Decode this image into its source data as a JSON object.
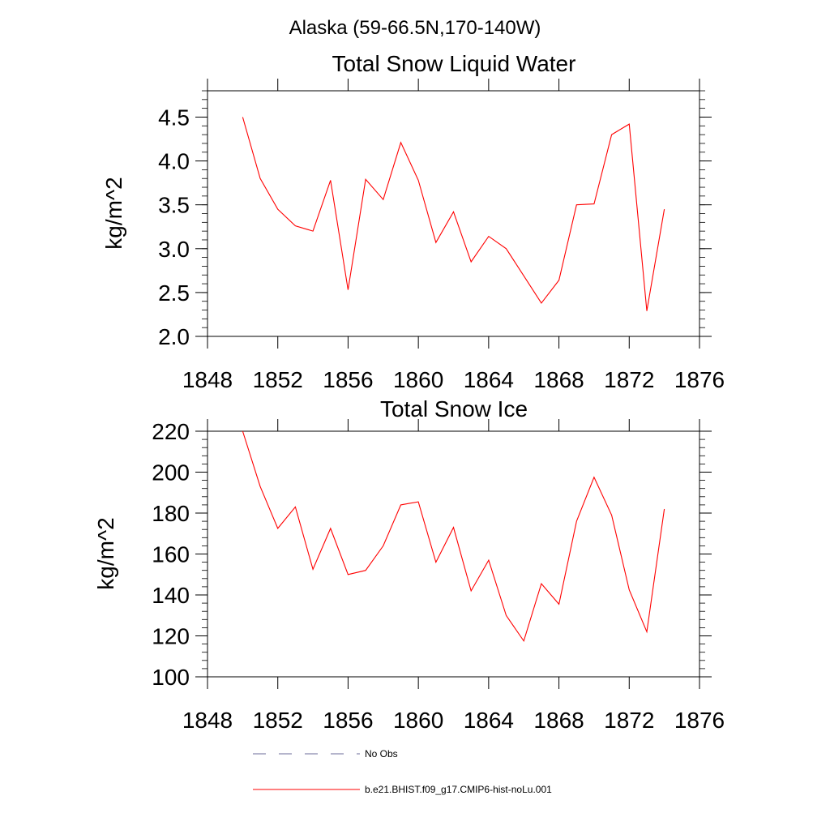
{
  "figure": {
    "main_title": "Alaska (59-66.5N,170-140W)"
  },
  "colors": {
    "model_line": "#ff0000",
    "obs_line": "#6b6b9a",
    "axis": "#000000"
  },
  "chart_data": [
    {
      "type": "line",
      "title": "Total Snow Liquid Water",
      "xlabel": "",
      "ylabel": "kg/m^2",
      "xlim": [
        1848,
        1876
      ],
      "ylim": [
        2.0,
        4.8
      ],
      "xticks": [
        1848,
        1852,
        1856,
        1860,
        1864,
        1868,
        1872,
        1876
      ],
      "xtick_labels": [
        "1848",
        "1852",
        "1856",
        "1860",
        "1864",
        "1868",
        "1872",
        "1876"
      ],
      "yticks": [
        2.0,
        2.5,
        3.0,
        3.5,
        4.0,
        4.5
      ],
      "ytick_labels": [
        "2.0",
        "2.5",
        "3.0",
        "3.5",
        "4.0",
        "4.5"
      ],
      "x": [
        1850,
        1851,
        1852,
        1853,
        1854,
        1855,
        1856,
        1857,
        1858,
        1859,
        1860,
        1861,
        1862,
        1863,
        1864,
        1865,
        1866,
        1867,
        1868,
        1869,
        1870,
        1871,
        1872,
        1873,
        1874
      ],
      "series": [
        {
          "name": "b.e21.BHIST.f09_g17.CMIP6-hist-noLu.001",
          "values": [
            4.5,
            3.8,
            3.45,
            3.26,
            3.2,
            3.78,
            2.53,
            3.79,
            3.56,
            4.21,
            3.78,
            3.07,
            3.42,
            2.85,
            3.14,
            3.0,
            2.69,
            2.38,
            2.64,
            3.5,
            3.51,
            4.3,
            4.42,
            2.29,
            3.45
          ]
        }
      ],
      "grid": false
    },
    {
      "type": "line",
      "title": "Total Snow Ice",
      "xlabel": "",
      "ylabel": "kg/m^2",
      "xlim": [
        1848,
        1876
      ],
      "ylim": [
        100,
        220
      ],
      "xticks": [
        1848,
        1852,
        1856,
        1860,
        1864,
        1868,
        1872,
        1876
      ],
      "xtick_labels": [
        "1848",
        "1852",
        "1856",
        "1860",
        "1864",
        "1868",
        "1872",
        "1876"
      ],
      "yticks": [
        100,
        120,
        140,
        160,
        180,
        200,
        220
      ],
      "ytick_labels": [
        "100",
        "120",
        "140",
        "160",
        "180",
        "200",
        "220"
      ],
      "x": [
        1850,
        1851,
        1852,
        1853,
        1854,
        1855,
        1856,
        1857,
        1858,
        1859,
        1860,
        1861,
        1862,
        1863,
        1864,
        1865,
        1866,
        1867,
        1868,
        1869,
        1870,
        1871,
        1872,
        1873,
        1874
      ],
      "series": [
        {
          "name": "b.e21.BHIST.f09_g17.CMIP6-hist-noLu.001",
          "values": [
            220.0,
            193.0,
            172.5,
            183.0,
            152.5,
            172.5,
            150.0,
            152.0,
            164.0,
            184.0,
            185.5,
            156.0,
            173.0,
            142.0,
            157.0,
            130.0,
            117.5,
            145.5,
            135.5,
            176.0,
            197.5,
            179.0,
            142.5,
            122.0,
            182.0
          ]
        }
      ],
      "grid": false
    }
  ],
  "legend": {
    "placement": "bottom-center",
    "items": [
      {
        "label": "No Obs",
        "style": "dashed"
      },
      {
        "label": "b.e21.BHIST.f09_g17.CMIP6-hist-noLu.001",
        "style": "solid"
      }
    ]
  }
}
